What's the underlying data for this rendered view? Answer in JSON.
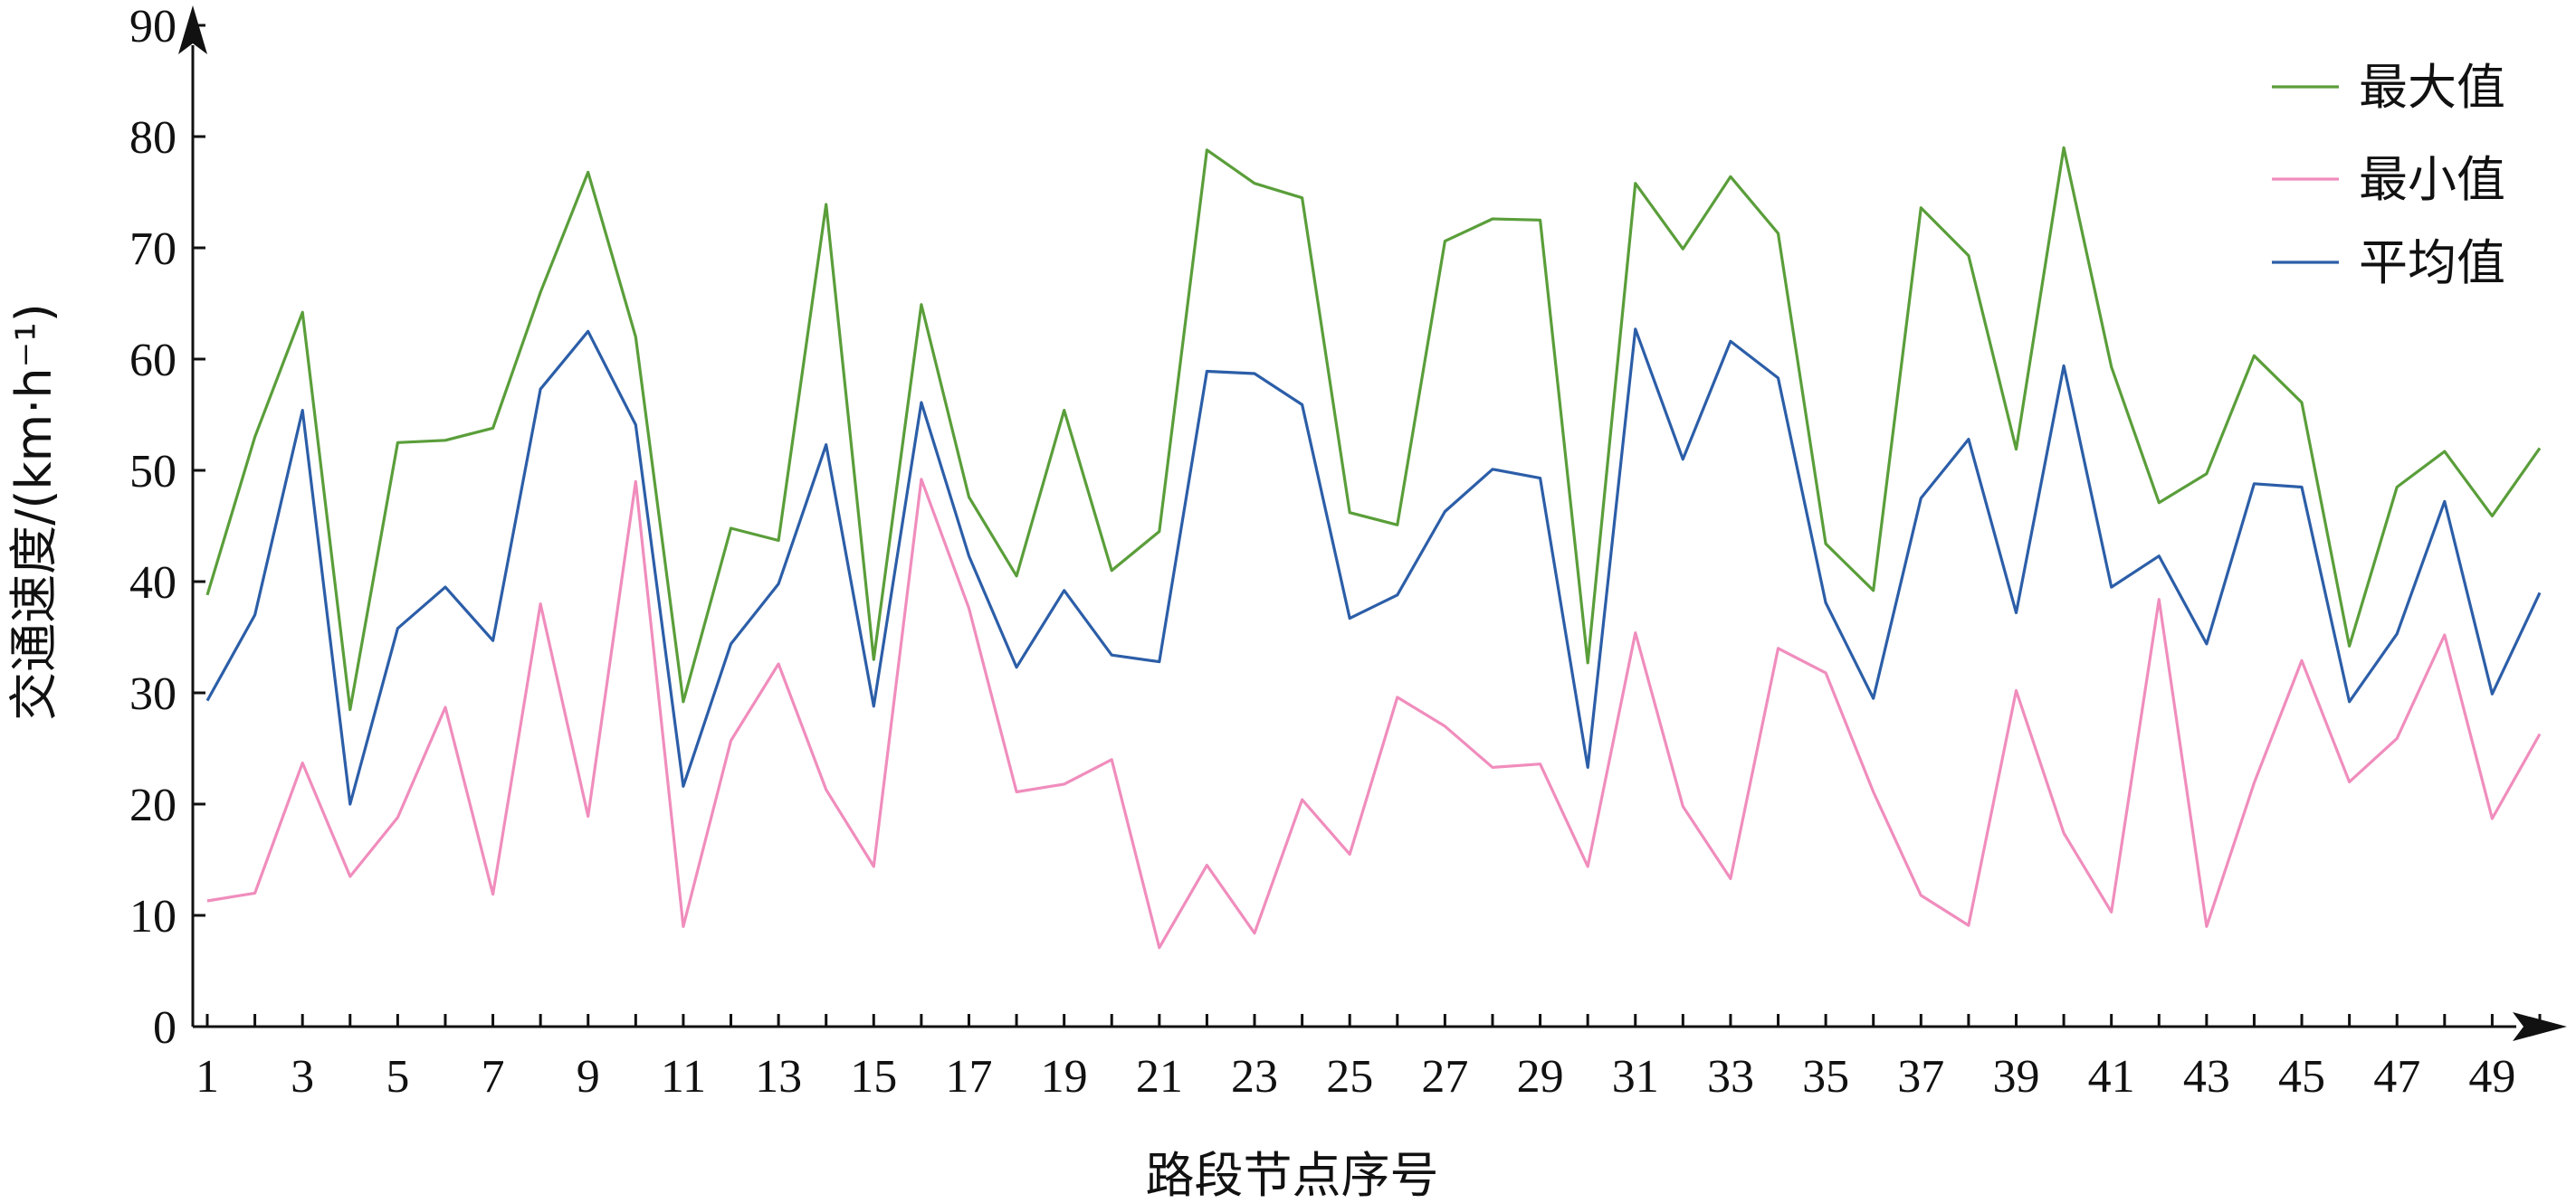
{
  "chart_data": {
    "type": "line",
    "xlabel": "路段节点序号",
    "ylabel": "交通速度/(km·h⁻¹)",
    "xlim": [
      1,
      50
    ],
    "ylim": [
      0,
      90
    ],
    "x_ticks": [
      1,
      3,
      5,
      7,
      9,
      11,
      13,
      15,
      17,
      19,
      21,
      23,
      25,
      27,
      29,
      31,
      33,
      35,
      37,
      39,
      41,
      43,
      45,
      47,
      49
    ],
    "y_ticks": [
      0,
      10,
      20,
      30,
      40,
      50,
      60,
      70,
      80,
      90
    ],
    "grid": false,
    "legend_position": "top-right",
    "x": [
      1,
      2,
      3,
      4,
      5,
      6,
      7,
      8,
      9,
      10,
      11,
      12,
      13,
      14,
      15,
      16,
      17,
      18,
      19,
      20,
      21,
      22,
      23,
      24,
      25,
      26,
      27,
      28,
      29,
      30,
      31,
      32,
      33,
      34,
      35,
      36,
      37,
      38,
      39,
      40,
      41,
      42,
      43,
      44,
      45,
      46,
      47,
      48,
      49,
      50
    ],
    "series": [
      {
        "name": "最大值",
        "color": "#5a9e3a",
        "values": [
          38.8,
          53.0,
          64.2,
          28.5,
          52.5,
          52.7,
          53.8,
          66.0,
          76.8,
          62.0,
          29.2,
          44.8,
          43.7,
          73.9,
          33.0,
          64.9,
          47.6,
          40.5,
          55.4,
          41.0,
          44.5,
          78.8,
          75.8,
          74.5,
          46.2,
          45.1,
          70.6,
          72.6,
          72.5,
          32.7,
          75.8,
          69.9,
          76.4,
          71.3,
          43.4,
          39.2,
          73.6,
          69.3,
          51.9,
          79.0,
          59.3,
          47.1,
          49.7,
          60.3,
          56.1,
          34.2,
          48.5,
          51.7,
          45.9,
          52.0
        ]
      },
      {
        "name": "最小值",
        "color": "#f08dbd",
        "values": [
          11.3,
          12.0,
          23.7,
          13.5,
          18.8,
          28.7,
          11.9,
          38.0,
          18.9,
          49.0,
          9.0,
          25.7,
          32.6,
          21.3,
          14.4,
          49.2,
          37.6,
          21.1,
          21.8,
          24.0,
          7.1,
          14.5,
          8.4,
          20.4,
          15.5,
          29.6,
          27.0,
          23.3,
          23.6,
          14.4,
          35.4,
          19.8,
          13.3,
          34.0,
          31.8,
          21.1,
          11.8,
          9.1,
          30.2,
          17.4,
          10.3,
          38.4,
          9.0,
          21.9,
          32.9,
          22.0,
          25.9,
          35.2,
          18.7,
          26.3
        ]
      },
      {
        "name": "平均值",
        "color": "#2c5ea8",
        "values": [
          29.3,
          37.0,
          55.4,
          20.0,
          35.8,
          39.5,
          34.7,
          57.3,
          62.5,
          54.1,
          21.6,
          34.4,
          39.8,
          52.3,
          28.8,
          56.1,
          42.3,
          32.3,
          39.2,
          33.4,
          32.8,
          58.9,
          58.7,
          55.9,
          36.7,
          38.8,
          46.3,
          50.1,
          49.3,
          23.3,
          62.7,
          51.0,
          61.6,
          58.3,
          38.1,
          29.5,
          47.5,
          52.8,
          37.2,
          59.4,
          39.5,
          42.3,
          34.4,
          48.8,
          48.5,
          29.2,
          35.3,
          47.2,
          29.9,
          39.0
        ]
      }
    ]
  }
}
